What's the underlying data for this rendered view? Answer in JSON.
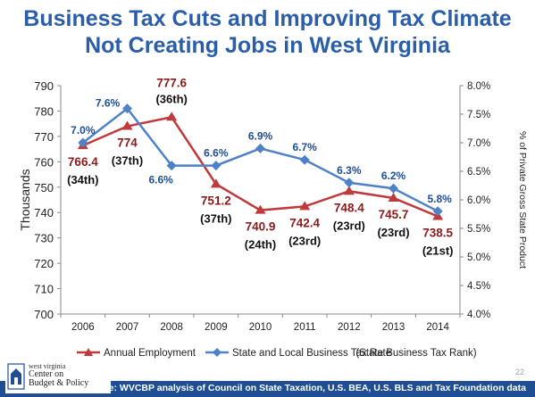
{
  "title": {
    "line1": "Business Tax Cuts and Improving Tax Climate",
    "line2": "Not Creating Jobs in West Virginia"
  },
  "colors": {
    "title": "#2a5ea8",
    "employment": "#c0393b",
    "employment_label": "#8b1a1a",
    "tax_rate": "#4f81c7",
    "tax_label": "#1f4e95",
    "footer": "#1f4e95"
  },
  "chart_data": {
    "type": "line",
    "categories": [
      "2006",
      "2007",
      "2008",
      "2009",
      "2010",
      "2011",
      "2012",
      "2013",
      "2014"
    ],
    "series": [
      {
        "name": "Annual Employment",
        "axis": "left",
        "marker": "triangle",
        "values": [
          766.4,
          774,
          777.6,
          751.2,
          740.9,
          742.4,
          748.4,
          745.7,
          738.5
        ],
        "labels": [
          "766.4",
          "774",
          "777.6",
          "751.2",
          "740.9",
          "742.4",
          "748.4",
          "745.7",
          "738.5"
        ],
        "ranks": [
          "(34th)",
          "(37th)",
          "(36th)",
          "(37th)",
          "(24th)",
          "(23rd)",
          "(23rd)",
          "(23rd)",
          "(21st)"
        ]
      },
      {
        "name": "State and Local Business Tax Rate",
        "axis": "right",
        "marker": "diamond",
        "values": [
          7.0,
          7.6,
          6.6,
          6.6,
          6.9,
          6.7,
          6.3,
          6.2,
          5.8
        ],
        "labels": [
          "7.0%",
          "7.6%",
          "6.6%",
          "6.6%",
          "6.9%",
          "6.7%",
          "6.3%",
          "6.2%",
          "5.8%"
        ]
      }
    ],
    "ylabel": "Thousands",
    "y2label": "% of Private  Gross State Product",
    "ylim": [
      700,
      790
    ],
    "y_ticks": [
      "700",
      "710",
      "720",
      "730",
      "740",
      "750",
      "760",
      "770",
      "780",
      "790"
    ],
    "y2lim": [
      4.0,
      8.0
    ],
    "y2_ticks": [
      "4.0%",
      "4.5%",
      "5.0%",
      "5.5%",
      "6.0%",
      "6.5%",
      "7.0%",
      "7.5%",
      "8.0%"
    ],
    "legend": {
      "position": "bottom",
      "employment": "Annual Employment",
      "tax_rate": "State and Local Business Tax Rate",
      "rank_note": "(State Business Tax Rank)"
    }
  },
  "footer": {
    "source": "Source: WVCBP analysis of Council on State Taxation, U.S. BEA, U.S. BLS and Tax Foundation data",
    "logo_line1": "west virginia",
    "logo_line2": "Center on",
    "logo_line3": "Budget & Policy",
    "page_number": "22"
  }
}
